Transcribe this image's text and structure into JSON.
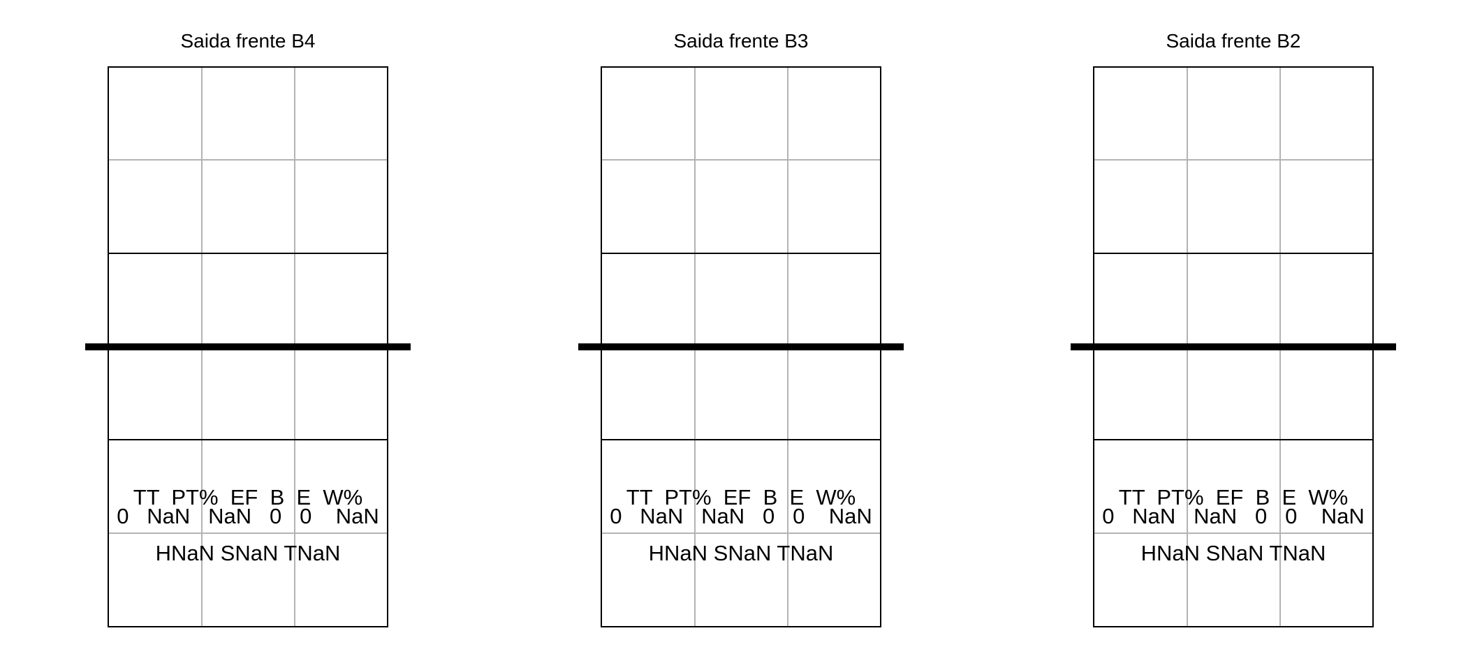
{
  "panels": [
    {
      "title": "Saida frente B4",
      "stats_header": "TT  PT%  EF  B  E  W%",
      "stats_values": "0   NaN   NaN   0   0    NaN",
      "breakdown": "HNaN SNaN TNaN"
    },
    {
      "title": "Saida frente B3",
      "stats_header": "TT  PT%  EF  B  E  W%",
      "stats_values": "0   NaN   NaN   0   0    NaN",
      "breakdown": "HNaN SNaN TNaN"
    },
    {
      "title": "Saida frente B2",
      "stats_header": "TT  PT%  EF  B  E  W%",
      "stats_values": "0   NaN   NaN   0   0    NaN",
      "breakdown": "HNaN SNaN TNaN"
    }
  ],
  "colors": {
    "court_line": "#000000",
    "grid_line": "#b3b3b3",
    "net": "#000000",
    "background": "#ffffff"
  }
}
